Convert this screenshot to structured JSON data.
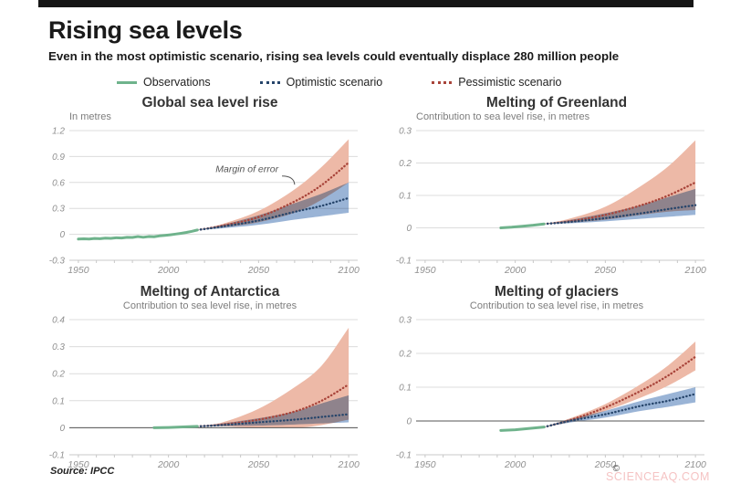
{
  "header": {
    "title": "Rising sea levels",
    "subtitle": "Even in the most optimistic scenario, rising sea levels could eventually displace 280 million people"
  },
  "legend": [
    {
      "label": "Observations",
      "style": "solid",
      "color": "#6fb38c"
    },
    {
      "label": "Optimistic scenario",
      "style": "dotted",
      "color": "#26456b"
    },
    {
      "label": "Pessimistic scenario",
      "style": "dotted",
      "color": "#a8443a"
    }
  ],
  "colors": {
    "observations": "#6fb38c",
    "optimistic_line": "#26456b",
    "pessimistic_line": "#a8443a",
    "optimistic_band": "#9ab4d6",
    "pessimistic_band": "#edb9a7",
    "grid": "#dcdcdc",
    "axis": "#c8c8c8",
    "tick_label": "#909090",
    "zero_line": "#555555",
    "annotation": "#555555"
  },
  "footer": {
    "source": "Source: IPCC",
    "copyright": "©",
    "logo": "AFP",
    "logo_color": "#2779bd",
    "watermark": "SCIENCEAQ.COM"
  },
  "chart_data": [
    {
      "type": "line",
      "title": "Global sea level rise",
      "subtitle": "In metres",
      "subtitle_align": "left",
      "xlim": [
        1945,
        2105
      ],
      "ylim": [
        -0.3,
        1.2
      ],
      "yticks": [
        -0.3,
        0,
        0.3,
        0.6,
        0.9,
        1.2
      ],
      "xticks_labeled": [
        1950,
        2000,
        2050,
        2100
      ],
      "xtick_minor_step": 10,
      "zero_line_dark": false,
      "annotation": {
        "text": "Margin of error",
        "tx": 2061,
        "ty": 0.72,
        "x1": 2063,
        "y1": 0.675,
        "x2": 2070,
        "y2": 0.575
      },
      "series": {
        "observations": [
          [
            1950,
            -0.055
          ],
          [
            1953,
            -0.052
          ],
          [
            1956,
            -0.054
          ],
          [
            1959,
            -0.048
          ],
          [
            1962,
            -0.05
          ],
          [
            1965,
            -0.044
          ],
          [
            1968,
            -0.046
          ],
          [
            1971,
            -0.04
          ],
          [
            1974,
            -0.042
          ],
          [
            1977,
            -0.035
          ],
          [
            1980,
            -0.036
          ],
          [
            1983,
            -0.026
          ],
          [
            1986,
            -0.034
          ],
          [
            1989,
            -0.026
          ],
          [
            1992,
            -0.028
          ],
          [
            1995,
            -0.018
          ],
          [
            1998,
            -0.012
          ],
          [
            2001,
            -0.005
          ],
          [
            2004,
            0.003
          ],
          [
            2007,
            0.012
          ],
          [
            2010,
            0.022
          ],
          [
            2013,
            0.035
          ],
          [
            2016,
            0.05
          ]
        ],
        "optimistic": [
          [
            2016,
            0.05
          ],
          [
            2030,
            0.09
          ],
          [
            2050,
            0.16
          ],
          [
            2070,
            0.26
          ],
          [
            2085,
            0.33
          ],
          [
            2100,
            0.42
          ]
        ],
        "optimistic_band": [
          [
            2016,
            0.05,
            0.05
          ],
          [
            2030,
            0.07,
            0.11
          ],
          [
            2050,
            0.11,
            0.22
          ],
          [
            2070,
            0.17,
            0.36
          ],
          [
            2085,
            0.21,
            0.47
          ],
          [
            2100,
            0.25,
            0.6
          ]
        ],
        "pessimistic": [
          [
            2016,
            0.05
          ],
          [
            2030,
            0.1
          ],
          [
            2050,
            0.2
          ],
          [
            2070,
            0.38
          ],
          [
            2085,
            0.57
          ],
          [
            2100,
            0.83
          ]
        ],
        "pessimistic_band": [
          [
            2016,
            0.05,
            0.05
          ],
          [
            2030,
            0.08,
            0.12
          ],
          [
            2050,
            0.14,
            0.27
          ],
          [
            2070,
            0.25,
            0.52
          ],
          [
            2085,
            0.4,
            0.78
          ],
          [
            2100,
            0.6,
            1.1
          ]
        ]
      }
    },
    {
      "type": "line",
      "title": "Melting of Greenland",
      "subtitle": "Contribution to sea level rise, in metres",
      "subtitle_align": "left",
      "xlim": [
        1945,
        2105
      ],
      "ylim": [
        -0.1,
        0.3
      ],
      "yticks": [
        -0.1,
        0,
        0.1,
        0.2,
        0.3
      ],
      "xticks_labeled": [
        1950,
        2000,
        2050,
        2100
      ],
      "xtick_minor_step": 10,
      "zero_line_dark": false,
      "series": {
        "observations": [
          [
            1992,
            0.0
          ],
          [
            1998,
            0.002
          ],
          [
            2004,
            0.005
          ],
          [
            2010,
            0.008
          ],
          [
            2016,
            0.012
          ]
        ],
        "optimistic": [
          [
            2016,
            0.012
          ],
          [
            2030,
            0.018
          ],
          [
            2050,
            0.03
          ],
          [
            2070,
            0.045
          ],
          [
            2085,
            0.058
          ],
          [
            2100,
            0.07
          ]
        ],
        "optimistic_band": [
          [
            2016,
            0.012,
            0.012
          ],
          [
            2030,
            0.014,
            0.024
          ],
          [
            2050,
            0.02,
            0.045
          ],
          [
            2070,
            0.028,
            0.07
          ],
          [
            2085,
            0.034,
            0.095
          ],
          [
            2100,
            0.04,
            0.12
          ]
        ],
        "pessimistic": [
          [
            2016,
            0.012
          ],
          [
            2030,
            0.02
          ],
          [
            2050,
            0.04
          ],
          [
            2070,
            0.07
          ],
          [
            2085,
            0.1
          ],
          [
            2100,
            0.14
          ]
        ],
        "pessimistic_band": [
          [
            2016,
            0.012,
            0.012
          ],
          [
            2030,
            0.016,
            0.028
          ],
          [
            2050,
            0.025,
            0.065
          ],
          [
            2070,
            0.04,
            0.13
          ],
          [
            2085,
            0.05,
            0.19
          ],
          [
            2100,
            0.055,
            0.27
          ]
        ]
      }
    },
    {
      "type": "line",
      "title": "Melting of Antarctica",
      "subtitle": "Contribution to sea level rise, in metres",
      "subtitle_align": "center",
      "xlim": [
        1945,
        2105
      ],
      "ylim": [
        -0.1,
        0.4
      ],
      "yticks": [
        -0.1,
        0,
        0.1,
        0.2,
        0.3,
        0.4
      ],
      "xticks_labeled": [
        1950,
        2000,
        2050,
        2100
      ],
      "xtick_minor_step": 10,
      "zero_line_dark": true,
      "series": {
        "observations": [
          [
            1992,
            0.0
          ],
          [
            2000,
            0.001
          ],
          [
            2008,
            0.003
          ],
          [
            2016,
            0.005
          ]
        ],
        "optimistic": [
          [
            2016,
            0.005
          ],
          [
            2030,
            0.01
          ],
          [
            2050,
            0.02
          ],
          [
            2070,
            0.03
          ],
          [
            2085,
            0.04
          ],
          [
            2100,
            0.05
          ]
        ],
        "optimistic_band": [
          [
            2016,
            0.005,
            0.005
          ],
          [
            2030,
            0.006,
            0.016
          ],
          [
            2050,
            0.008,
            0.035
          ],
          [
            2070,
            0.012,
            0.06
          ],
          [
            2085,
            0.016,
            0.09
          ],
          [
            2100,
            0.02,
            0.12
          ]
        ],
        "pessimistic": [
          [
            2016,
            0.005
          ],
          [
            2030,
            0.012
          ],
          [
            2050,
            0.03
          ],
          [
            2070,
            0.06
          ],
          [
            2085,
            0.1
          ],
          [
            2100,
            0.16
          ]
        ],
        "pessimistic_band": [
          [
            2016,
            0.005,
            0.005
          ],
          [
            2030,
            0.005,
            0.02
          ],
          [
            2050,
            0.0,
            0.07
          ],
          [
            2070,
            0.0,
            0.15
          ],
          [
            2085,
            0.01,
            0.23
          ],
          [
            2100,
            0.03,
            0.37
          ]
        ]
      }
    },
    {
      "type": "line",
      "title": "Melting of glaciers",
      "subtitle": "Contribution to sea level rise, in metres",
      "subtitle_align": "center",
      "xlim": [
        1945,
        2105
      ],
      "ylim": [
        -0.1,
        0.3
      ],
      "yticks": [
        -0.1,
        0,
        0.1,
        0.2,
        0.3
      ],
      "xticks_labeled": [
        1950,
        2000,
        2050,
        2100
      ],
      "xtick_minor_step": 10,
      "zero_line_dark": true,
      "series": {
        "observations": [
          [
            1992,
            -0.028
          ],
          [
            2000,
            -0.026
          ],
          [
            2008,
            -0.022
          ],
          [
            2016,
            -0.018
          ]
        ],
        "optimistic": [
          [
            2016,
            -0.018
          ],
          [
            2030,
            0.0
          ],
          [
            2050,
            0.02
          ],
          [
            2070,
            0.045
          ],
          [
            2085,
            0.06
          ],
          [
            2100,
            0.08
          ]
        ],
        "optimistic_band": [
          [
            2016,
            -0.018,
            -0.018
          ],
          [
            2030,
            -0.005,
            0.005
          ],
          [
            2050,
            0.01,
            0.03
          ],
          [
            2070,
            0.03,
            0.06
          ],
          [
            2085,
            0.042,
            0.08
          ],
          [
            2100,
            0.055,
            0.1
          ]
        ],
        "pessimistic": [
          [
            2016,
            -0.018
          ],
          [
            2030,
            0.002
          ],
          [
            2050,
            0.04
          ],
          [
            2070,
            0.09
          ],
          [
            2085,
            0.135
          ],
          [
            2100,
            0.19
          ]
        ],
        "pessimistic_band": [
          [
            2016,
            -0.018,
            -0.018
          ],
          [
            2030,
            -0.003,
            0.007
          ],
          [
            2050,
            0.03,
            0.05
          ],
          [
            2070,
            0.07,
            0.11
          ],
          [
            2085,
            0.105,
            0.165
          ],
          [
            2100,
            0.15,
            0.235
          ]
        ]
      }
    }
  ]
}
